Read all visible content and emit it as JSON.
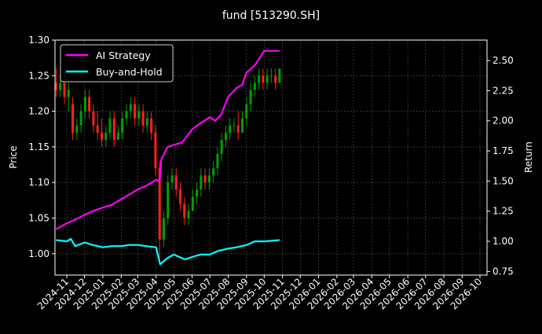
{
  "chart_data": {
    "type": "candlestick+line",
    "title": "fund [513290.SH]",
    "ylabel": "Price",
    "y2label": "Return",
    "ylim": [
      0.97,
      1.3
    ],
    "y2lim": [
      0.72,
      2.67
    ],
    "xlim": [
      "2024-10-12",
      "2026-10-13"
    ],
    "yticks": [
      "1.00",
      "1.05",
      "1.10",
      "1.15",
      "1.20",
      "1.25",
      "1.30"
    ],
    "y2ticks": [
      "0.75",
      "1.00",
      "1.25",
      "1.50",
      "1.75",
      "2.00",
      "2.25",
      "2.50"
    ],
    "xticks": [
      "2024-11",
      "2024-12",
      "2025-01",
      "2025-02",
      "2025-03",
      "2025-04",
      "2025-05",
      "2025-06",
      "2025-07",
      "2025-08",
      "2025-09",
      "2025-10",
      "2025-11",
      "2025-12",
      "2026-01",
      "2026-02",
      "2026-03",
      "2026-04",
      "2026-05",
      "2026-06",
      "2026-07",
      "2026-08",
      "2026-09",
      "2026-10"
    ],
    "grid": true,
    "legend_placement": "top-left",
    "colors": {
      "up": "#00a000",
      "down": "#ff2020",
      "strategy": "#ff00ff",
      "buy_hold": "#00ffff",
      "background": "#000000"
    },
    "candles_columns": [
      "date",
      "open",
      "high",
      "low",
      "close"
    ],
    "candles": [
      [
        "2024-10-14",
        1.24,
        1.26,
        1.22,
        1.23
      ],
      [
        "2024-10-21",
        1.23,
        1.25,
        1.22,
        1.24
      ],
      [
        "2024-10-28",
        1.24,
        1.25,
        1.21,
        1.22
      ],
      [
        "2024-11-04",
        1.22,
        1.24,
        1.2,
        1.23
      ],
      [
        "2024-11-11",
        1.21,
        1.22,
        1.16,
        1.17
      ],
      [
        "2024-11-18",
        1.17,
        1.19,
        1.16,
        1.18
      ],
      [
        "2024-11-25",
        1.18,
        1.21,
        1.17,
        1.2
      ],
      [
        "2024-12-02",
        1.2,
        1.23,
        1.19,
        1.22
      ],
      [
        "2024-12-09",
        1.22,
        1.23,
        1.19,
        1.2
      ],
      [
        "2024-12-16",
        1.2,
        1.21,
        1.17,
        1.18
      ],
      [
        "2024-12-23",
        1.18,
        1.2,
        1.16,
        1.17
      ],
      [
        "2024-12-30",
        1.17,
        1.19,
        1.15,
        1.16
      ],
      [
        "2025-01-06",
        1.16,
        1.18,
        1.15,
        1.17
      ],
      [
        "2025-01-13",
        1.17,
        1.2,
        1.16,
        1.19
      ],
      [
        "2025-01-20",
        1.19,
        1.2,
        1.15,
        1.16
      ],
      [
        "2025-01-27",
        1.16,
        1.18,
        1.16,
        1.17
      ],
      [
        "2025-02-03",
        1.17,
        1.2,
        1.16,
        1.19
      ],
      [
        "2025-02-10",
        1.19,
        1.21,
        1.18,
        1.2
      ],
      [
        "2025-02-17",
        1.2,
        1.22,
        1.19,
        1.21
      ],
      [
        "2025-02-24",
        1.21,
        1.22,
        1.18,
        1.19
      ],
      [
        "2025-03-03",
        1.19,
        1.21,
        1.18,
        1.2
      ],
      [
        "2025-03-10",
        1.2,
        1.21,
        1.17,
        1.18
      ],
      [
        "2025-03-17",
        1.18,
        1.2,
        1.17,
        1.19
      ],
      [
        "2025-03-24",
        1.19,
        1.2,
        1.16,
        1.17
      ],
      [
        "2025-03-31",
        1.17,
        1.18,
        1.11,
        1.12
      ],
      [
        "2025-04-07",
        1.12,
        1.13,
        0.99,
        1.02
      ],
      [
        "2025-04-14",
        1.02,
        1.06,
        1.01,
        1.05
      ],
      [
        "2025-04-21",
        1.05,
        1.11,
        1.04,
        1.1
      ],
      [
        "2025-04-28",
        1.1,
        1.12,
        1.09,
        1.11
      ],
      [
        "2025-05-05",
        1.11,
        1.12,
        1.08,
        1.09
      ],
      [
        "2025-05-12",
        1.09,
        1.1,
        1.06,
        1.07
      ],
      [
        "2025-05-19",
        1.07,
        1.08,
        1.04,
        1.05
      ],
      [
        "2025-05-26",
        1.05,
        1.07,
        1.04,
        1.06
      ],
      [
        "2025-06-02",
        1.06,
        1.09,
        1.06,
        1.08
      ],
      [
        "2025-06-09",
        1.08,
        1.1,
        1.07,
        1.09
      ],
      [
        "2025-06-16",
        1.09,
        1.12,
        1.08,
        1.11
      ],
      [
        "2025-06-23",
        1.11,
        1.12,
        1.09,
        1.1
      ],
      [
        "2025-06-30",
        1.1,
        1.12,
        1.09,
        1.11
      ],
      [
        "2025-07-07",
        1.11,
        1.13,
        1.1,
        1.12
      ],
      [
        "2025-07-14",
        1.12,
        1.15,
        1.11,
        1.14
      ],
      [
        "2025-07-21",
        1.14,
        1.17,
        1.13,
        1.16
      ],
      [
        "2025-07-28",
        1.16,
        1.18,
        1.15,
        1.17
      ],
      [
        "2025-08-04",
        1.17,
        1.19,
        1.16,
        1.18
      ],
      [
        "2025-08-11",
        1.18,
        1.19,
        1.17,
        1.18
      ],
      [
        "2025-08-18",
        1.18,
        1.2,
        1.16,
        1.17
      ],
      [
        "2025-08-25",
        1.17,
        1.2,
        1.17,
        1.19
      ],
      [
        "2025-09-01",
        1.19,
        1.22,
        1.18,
        1.21
      ],
      [
        "2025-09-08",
        1.21,
        1.24,
        1.2,
        1.23
      ],
      [
        "2025-09-15",
        1.23,
        1.25,
        1.22,
        1.24
      ],
      [
        "2025-09-22",
        1.24,
        1.26,
        1.23,
        1.25
      ],
      [
        "2025-09-29",
        1.25,
        1.26,
        1.23,
        1.24
      ],
      [
        "2025-10-06",
        1.24,
        1.26,
        1.23,
        1.25
      ],
      [
        "2025-10-13",
        1.25,
        1.26,
        1.24,
        1.25
      ],
      [
        "2025-10-20",
        1.25,
        1.26,
        1.23,
        1.24
      ],
      [
        "2025-10-27",
        1.24,
        1.26,
        1.24,
        1.26
      ]
    ],
    "series": [
      {
        "name": "AI Strategy",
        "axis": "right",
        "points": [
          [
            "2024-10-14",
            1.1
          ],
          [
            "2024-11-01",
            1.15
          ],
          [
            "2024-11-15",
            1.18
          ],
          [
            "2024-12-01",
            1.22
          ],
          [
            "2024-12-15",
            1.25
          ],
          [
            "2025-01-01",
            1.28
          ],
          [
            "2025-01-15",
            1.3
          ],
          [
            "2025-02-01",
            1.35
          ],
          [
            "2025-02-15",
            1.39
          ],
          [
            "2025-03-01",
            1.43
          ],
          [
            "2025-03-15",
            1.46
          ],
          [
            "2025-04-01",
            1.51
          ],
          [
            "2025-04-07",
            1.5
          ],
          [
            "2025-04-10",
            1.68
          ],
          [
            "2025-04-20",
            1.78
          ],
          [
            "2025-05-01",
            1.8
          ],
          [
            "2025-05-15",
            1.82
          ],
          [
            "2025-06-01",
            1.93
          ],
          [
            "2025-06-15",
            1.98
          ],
          [
            "2025-07-01",
            2.03
          ],
          [
            "2025-07-10",
            2.0
          ],
          [
            "2025-07-20",
            2.05
          ],
          [
            "2025-08-01",
            2.2
          ],
          [
            "2025-08-15",
            2.27
          ],
          [
            "2025-08-25",
            2.3
          ],
          [
            "2025-09-01",
            2.4
          ],
          [
            "2025-09-15",
            2.46
          ],
          [
            "2025-10-01",
            2.58
          ],
          [
            "2025-10-27",
            2.58
          ]
        ]
      },
      {
        "name": "Buy-and-Hold",
        "axis": "right",
        "points": [
          [
            "2024-10-14",
            1.01
          ],
          [
            "2024-11-01",
            1.0
          ],
          [
            "2024-11-08",
            1.02
          ],
          [
            "2024-11-15",
            0.96
          ],
          [
            "2024-12-01",
            0.99
          ],
          [
            "2024-12-15",
            0.97
          ],
          [
            "2025-01-01",
            0.95
          ],
          [
            "2025-01-15",
            0.96
          ],
          [
            "2025-02-01",
            0.96
          ],
          [
            "2025-02-15",
            0.97
          ],
          [
            "2025-03-01",
            0.97
          ],
          [
            "2025-03-15",
            0.96
          ],
          [
            "2025-04-01",
            0.95
          ],
          [
            "2025-04-08",
            0.81
          ],
          [
            "2025-04-20",
            0.86
          ],
          [
            "2025-05-01",
            0.89
          ],
          [
            "2025-05-20",
            0.85
          ],
          [
            "2025-06-01",
            0.87
          ],
          [
            "2025-06-15",
            0.89
          ],
          [
            "2025-07-01",
            0.89
          ],
          [
            "2025-07-15",
            0.92
          ],
          [
            "2025-08-01",
            0.94
          ],
          [
            "2025-08-15",
            0.95
          ],
          [
            "2025-09-01",
            0.97
          ],
          [
            "2025-09-15",
            1.0
          ],
          [
            "2025-10-01",
            1.0
          ],
          [
            "2025-10-27",
            1.01
          ]
        ]
      }
    ]
  }
}
